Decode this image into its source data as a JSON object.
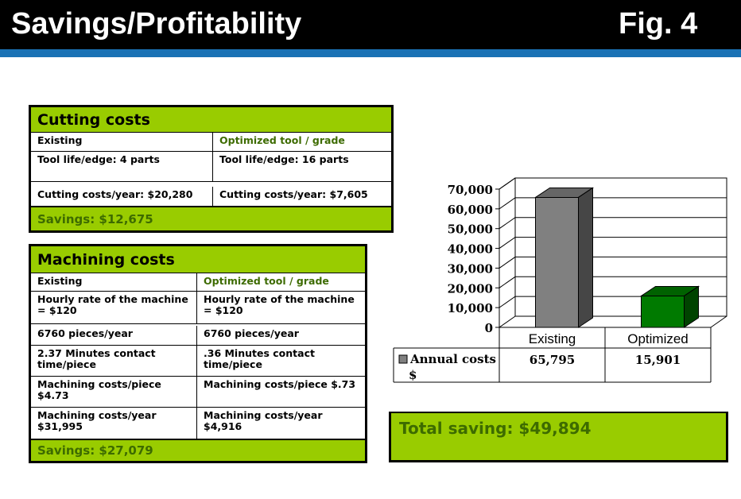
{
  "header": {
    "title": "Savings/Profitability",
    "figure": "Fig. 4"
  },
  "cutting": {
    "title": "Cutting costs",
    "rows": [
      [
        "Existing",
        "Optimized tool / grade"
      ],
      [
        "Tool life/edge: 4 parts",
        "Tool life/edge: 16 parts"
      ],
      [
        "Cutting costs/year: $20,280",
        "Cutting costs/year: $7,605"
      ]
    ],
    "savings": "Savings:  $12,675"
  },
  "machining": {
    "title": "Machining costs",
    "rows": [
      [
        "Existing",
        "Optimized tool / grade"
      ],
      [
        "Hourly rate of the machine = $120",
        "Hourly rate of the machine = $120"
      ],
      [
        "6760 pieces/year",
        "6760 pieces/year"
      ],
      [
        "2.37 Minutes  contact time/piece",
        ".36 Minutes  contact time/piece"
      ],
      [
        "Machining  costs/piece $4.73",
        "Machining  costs/piece $.73"
      ],
      [
        "Machining  costs/year $31,995",
        "Machining  costs/year $4,916"
      ]
    ],
    "savings": "Savings:  $27,079"
  },
  "chart_data": {
    "type": "bar",
    "categories": [
      "Existing",
      "Optimized"
    ],
    "series": [
      {
        "name": "Annual costs $",
        "values": [
          65795,
          15901
        ]
      }
    ],
    "series_labels": [
      "65,795",
      "15,901"
    ],
    "yticks": [
      "0",
      "10,000",
      "20,000",
      "30,000",
      "40,000",
      "50,000",
      "60,000",
      "70,000"
    ],
    "ylim": [
      0,
      70000
    ],
    "colors": [
      "#808080",
      "#007a00"
    ],
    "legend_marker_color": "#808080",
    "grid": true,
    "style": "3d-bar with data table"
  },
  "total": "Total saving: $49,894"
}
